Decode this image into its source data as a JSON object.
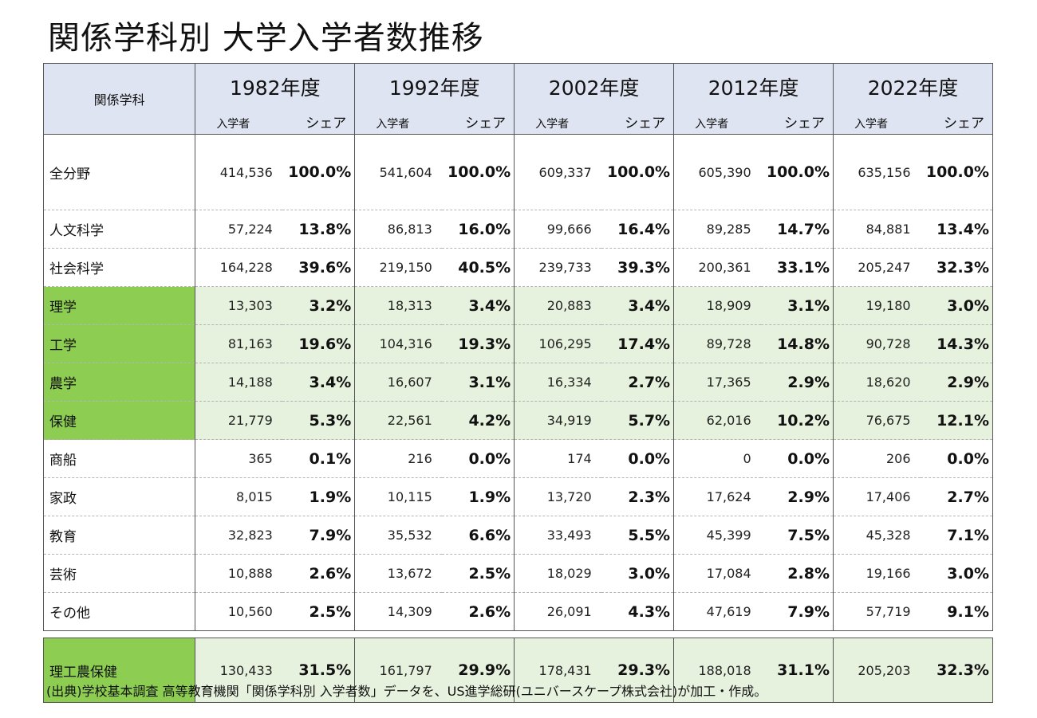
{
  "title": "関係学科別 大学入学者数推移",
  "header": {
    "label": "関係学科",
    "years": [
      "1982年度",
      "1992年度",
      "2002年度",
      "2012年度",
      "2022年度"
    ],
    "sub_count": "入学者",
    "sub_share": "シェア"
  },
  "rows": [
    {
      "label": "全分野",
      "values": [
        [
          "414,536",
          "100.0%"
        ],
        [
          "541,604",
          "100.0%"
        ],
        [
          "609,337",
          "100.0%"
        ],
        [
          "605,390",
          "100.0%"
        ],
        [
          "635,156",
          "100.0%"
        ]
      ]
    },
    {
      "label": "人文科学",
      "values": [
        [
          "57,224",
          "13.8%"
        ],
        [
          "86,813",
          "16.0%"
        ],
        [
          "99,666",
          "16.4%"
        ],
        [
          "89,285",
          "14.7%"
        ],
        [
          "84,881",
          "13.4%"
        ]
      ]
    },
    {
      "label": "社会科学",
      "values": [
        [
          "164,228",
          "39.6%"
        ],
        [
          "219,150",
          "40.5%"
        ],
        [
          "239,733",
          "39.3%"
        ],
        [
          "200,361",
          "33.1%"
        ],
        [
          "205,247",
          "32.3%"
        ]
      ]
    },
    {
      "label": "理学",
      "values": [
        [
          "13,303",
          "3.2%"
        ],
        [
          "18,313",
          "3.4%"
        ],
        [
          "20,883",
          "3.4%"
        ],
        [
          "18,909",
          "3.1%"
        ],
        [
          "19,180",
          "3.0%"
        ]
      ]
    },
    {
      "label": "工学",
      "values": [
        [
          "81,163",
          "19.6%"
        ],
        [
          "104,316",
          "19.3%"
        ],
        [
          "106,295",
          "17.4%"
        ],
        [
          "89,728",
          "14.8%"
        ],
        [
          "90,728",
          "14.3%"
        ]
      ]
    },
    {
      "label": "農学",
      "values": [
        [
          "14,188",
          "3.4%"
        ],
        [
          "16,607",
          "3.1%"
        ],
        [
          "16,334",
          "2.7%"
        ],
        [
          "17,365",
          "2.9%"
        ],
        [
          "18,620",
          "2.9%"
        ]
      ]
    },
    {
      "label": "保健",
      "values": [
        [
          "21,779",
          "5.3%"
        ],
        [
          "22,561",
          "4.2%"
        ],
        [
          "34,919",
          "5.7%"
        ],
        [
          "62,016",
          "10.2%"
        ],
        [
          "76,675",
          "12.1%"
        ]
      ]
    },
    {
      "label": "商船",
      "values": [
        [
          "365",
          "0.1%"
        ],
        [
          "216",
          "0.0%"
        ],
        [
          "174",
          "0.0%"
        ],
        [
          "0",
          "0.0%"
        ],
        [
          "206",
          "0.0%"
        ]
      ]
    },
    {
      "label": "家政",
      "values": [
        [
          "8,015",
          "1.9%"
        ],
        [
          "10,115",
          "1.9%"
        ],
        [
          "13,720",
          "2.3%"
        ],
        [
          "17,624",
          "2.9%"
        ],
        [
          "17,406",
          "2.7%"
        ]
      ]
    },
    {
      "label": "教育",
      "values": [
        [
          "32,823",
          "7.9%"
        ],
        [
          "35,532",
          "6.6%"
        ],
        [
          "33,493",
          "5.5%"
        ],
        [
          "45,399",
          "7.5%"
        ],
        [
          "45,328",
          "7.1%"
        ]
      ]
    },
    {
      "label": "芸術",
      "values": [
        [
          "10,888",
          "2.6%"
        ],
        [
          "13,672",
          "2.5%"
        ],
        [
          "18,029",
          "3.0%"
        ],
        [
          "17,084",
          "2.8%"
        ],
        [
          "19,166",
          "3.0%"
        ]
      ]
    },
    {
      "label": "その他",
      "values": [
        [
          "10,560",
          "2.5%"
        ],
        [
          "14,309",
          "2.6%"
        ],
        [
          "26,091",
          "4.3%"
        ],
        [
          "47,619",
          "7.9%"
        ],
        [
          "57,719",
          "9.1%"
        ]
      ]
    }
  ],
  "summary": {
    "label": "理工農保健",
    "values": [
      [
        "130,433",
        "31.5%"
      ],
      [
        "161,797",
        "29.9%"
      ],
      [
        "178,431",
        "29.3%"
      ],
      [
        "188,018",
        "31.1%"
      ],
      [
        "205,203",
        "32.3%"
      ]
    ]
  },
  "source": "(出典)学校基本調査 高等教育機関「関係学科別 入学者数」データを、US進学総研(ユニバースケープ株式会社)が加工・作成。",
  "colors": {
    "header_bg": "#dfe4f2",
    "stem_label_bg": "#8ccd52",
    "stem_row_bg": "#e6f1de"
  }
}
